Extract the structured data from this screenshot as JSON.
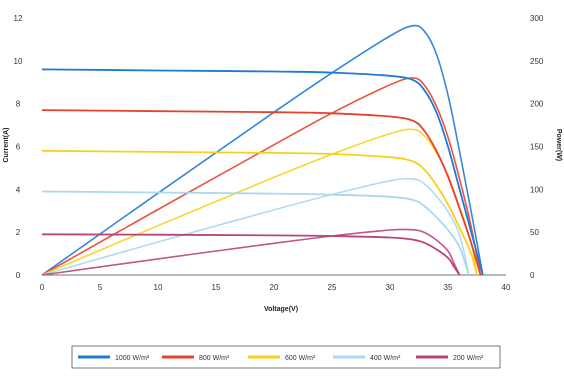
{
  "chart_data": {
    "type": "line",
    "title": "",
    "xlabel": "Voltage(V)",
    "ylabel_left": "Current(A)",
    "ylabel_right": "Power(W)",
    "xlim": [
      0,
      40
    ],
    "ylim_left": [
      0,
      12
    ],
    "ylim_right": [
      0,
      300
    ],
    "x_ticks": [
      "0",
      "5",
      "10",
      "15",
      "20",
      "25",
      "30",
      "35",
      "40"
    ],
    "y_left_ticks": [
      "0",
      "2",
      "4",
      "6",
      "8",
      "10",
      "12"
    ],
    "y_right_ticks": [
      "0",
      "50",
      "100",
      "150",
      "200",
      "250",
      "300"
    ],
    "grid": false,
    "legend_position": "bottom",
    "series": [
      {
        "name": "1000 W/m²",
        "color": "#1f7ad6",
        "current": [
          [
            0,
            9.6
          ],
          [
            10,
            9.55
          ],
          [
            20,
            9.5
          ],
          [
            25,
            9.45
          ],
          [
            30,
            9.3
          ],
          [
            32,
            9.1
          ],
          [
            33,
            8.6
          ],
          [
            34,
            7.6
          ],
          [
            35,
            6.0
          ],
          [
            36,
            4.0
          ],
          [
            37,
            2.0
          ],
          [
            38,
            0.0
          ]
        ],
        "power": [
          [
            0,
            0
          ],
          [
            10,
            95.5
          ],
          [
            20,
            190
          ],
          [
            25,
            236
          ],
          [
            30,
            279
          ],
          [
            32,
            291
          ],
          [
            33,
            284
          ],
          [
            34,
            258
          ],
          [
            35,
            210
          ],
          [
            36,
            144
          ],
          [
            37,
            74
          ],
          [
            38,
            0
          ]
        ]
      },
      {
        "name": "800 W/m²",
        "color": "#e8402a",
        "current": [
          [
            0,
            7.7
          ],
          [
            10,
            7.65
          ],
          [
            20,
            7.6
          ],
          [
            25,
            7.55
          ],
          [
            30,
            7.4
          ],
          [
            32,
            7.2
          ],
          [
            33,
            6.7
          ],
          [
            34,
            5.8
          ],
          [
            35,
            4.6
          ],
          [
            36,
            3.1
          ],
          [
            37,
            1.5
          ],
          [
            37.8,
            0.0
          ]
        ],
        "power": [
          [
            0,
            0
          ],
          [
            10,
            76.5
          ],
          [
            20,
            152
          ],
          [
            25,
            189
          ],
          [
            30,
            222
          ],
          [
            32,
            230
          ],
          [
            33,
            221
          ],
          [
            34,
            197
          ],
          [
            35,
            161
          ],
          [
            36,
            112
          ],
          [
            37,
            56
          ],
          [
            37.8,
            0
          ]
        ]
      },
      {
        "name": "600 W/m²",
        "color": "#f5d11a",
        "current": [
          [
            0,
            5.8
          ],
          [
            10,
            5.75
          ],
          [
            20,
            5.7
          ],
          [
            25,
            5.65
          ],
          [
            30,
            5.5
          ],
          [
            32,
            5.3
          ],
          [
            33,
            4.9
          ],
          [
            34,
            4.2
          ],
          [
            35,
            3.3
          ],
          [
            36,
            2.2
          ],
          [
            37,
            1.0
          ],
          [
            37.5,
            0.0
          ]
        ],
        "power": [
          [
            0,
            0
          ],
          [
            10,
            57.5
          ],
          [
            20,
            114
          ],
          [
            25,
            141
          ],
          [
            30,
            165
          ],
          [
            32,
            170
          ],
          [
            33,
            162
          ],
          [
            34,
            143
          ],
          [
            35,
            116
          ],
          [
            36,
            79
          ],
          [
            37,
            37
          ],
          [
            37.5,
            0
          ]
        ]
      },
      {
        "name": "400 W/m²",
        "color": "#a9d8ef",
        "current": [
          [
            0,
            3.9
          ],
          [
            10,
            3.85
          ],
          [
            20,
            3.8
          ],
          [
            25,
            3.75
          ],
          [
            30,
            3.65
          ],
          [
            32,
            3.5
          ],
          [
            33,
            3.2
          ],
          [
            34,
            2.7
          ],
          [
            35,
            2.1
          ],
          [
            36,
            1.3
          ],
          [
            36.8,
            0.0
          ]
        ],
        "power": [
          [
            0,
            0
          ],
          [
            10,
            38.5
          ],
          [
            20,
            76
          ],
          [
            25,
            94
          ],
          [
            30,
            110
          ],
          [
            32,
            112
          ],
          [
            33,
            106
          ],
          [
            34,
            92
          ],
          [
            35,
            74
          ],
          [
            36,
            47
          ],
          [
            36.8,
            0
          ]
        ]
      },
      {
        "name": "200 W/m²",
        "color": "#b8457a",
        "current": [
          [
            0,
            1.9
          ],
          [
            10,
            1.88
          ],
          [
            20,
            1.85
          ],
          [
            25,
            1.82
          ],
          [
            30,
            1.75
          ],
          [
            32,
            1.65
          ],
          [
            33,
            1.5
          ],
          [
            34,
            1.2
          ],
          [
            35,
            0.8
          ],
          [
            35.5,
            0.4
          ],
          [
            36,
            0.0
          ]
        ],
        "power": [
          [
            0,
            0
          ],
          [
            10,
            18.8
          ],
          [
            20,
            37
          ],
          [
            25,
            45.5
          ],
          [
            30,
            52.5
          ],
          [
            32,
            52.8
          ],
          [
            33,
            49.5
          ],
          [
            34,
            40.8
          ],
          [
            35,
            28
          ],
          [
            35.5,
            14.2
          ],
          [
            36,
            0
          ]
        ]
      }
    ]
  }
}
